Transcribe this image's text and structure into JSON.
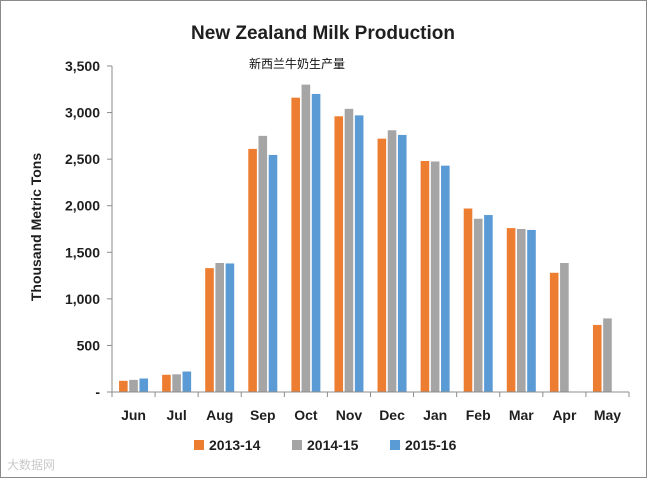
{
  "chart_data": {
    "type": "bar",
    "title": "New Zealand Milk Production",
    "subtitle": "新西兰牛奶生产量",
    "xlabel": "",
    "ylabel": "Thousand Metric Tons",
    "ylim": [
      0,
      3500
    ],
    "ytick_values": [
      0,
      500,
      1000,
      1500,
      2000,
      2500,
      3000,
      3500
    ],
    "ytick_labels": [
      "-",
      "500",
      "1,000",
      "1,500",
      "2,000",
      "2,500",
      "3,000",
      "3,500"
    ],
    "grid": false,
    "legend_position": "bottom",
    "categories": [
      "Jun",
      "Jul",
      "Aug",
      "Sep",
      "Oct",
      "Nov",
      "Dec",
      "Jan",
      "Feb",
      "Mar",
      "Apr",
      "May"
    ],
    "series": [
      {
        "name": "2013-14",
        "color": "#ED7D31",
        "values": [
          120,
          185,
          1330,
          2610,
          3160,
          2960,
          2720,
          2480,
          1970,
          1760,
          1280,
          720
        ]
      },
      {
        "name": "2014-15",
        "color": "#A5A5A5",
        "values": [
          130,
          190,
          1385,
          2750,
          3300,
          3040,
          2810,
          2475,
          1860,
          1750,
          1385,
          790
        ]
      },
      {
        "name": "2015-16",
        "color": "#5B9BD5",
        "values": [
          145,
          220,
          1380,
          2545,
          3200,
          2970,
          2760,
          2430,
          1900,
          1740,
          null,
          null
        ]
      }
    ]
  },
  "watermark": "大数据网"
}
